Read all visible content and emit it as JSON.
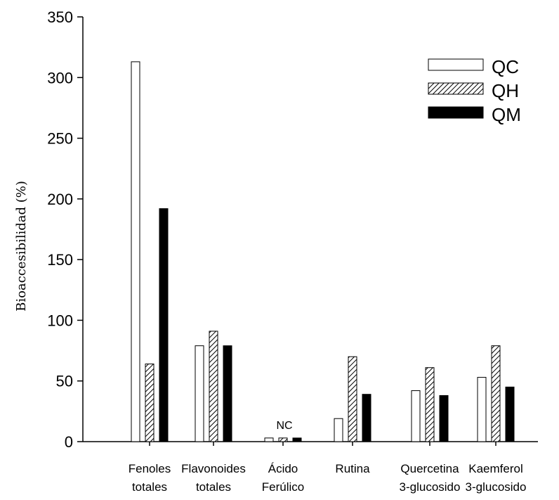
{
  "chart_data": {
    "type": "bar",
    "title": "",
    "xlabel": "",
    "ylabel": "Bioaccesibilidad (%)",
    "ylim": [
      0,
      350
    ],
    "yticks": [
      0,
      50,
      100,
      150,
      200,
      250,
      300,
      350
    ],
    "grid": false,
    "legend_position": "top-right",
    "categories": [
      [
        "Fenoles",
        "totales"
      ],
      [
        "Flavonoides",
        "totales"
      ],
      [
        "Ácido",
        "Ferúlico"
      ],
      [
        "Rutina"
      ],
      [
        "Quercetina",
        "3-glucosido"
      ],
      [
        "Kaemferol",
        "3-glucosido"
      ]
    ],
    "series": [
      {
        "name": "QC",
        "style": "white",
        "values": [
          313,
          79,
          3,
          19,
          42,
          53
        ]
      },
      {
        "name": "QH",
        "style": "hatched",
        "values": [
          64,
          91,
          3,
          70,
          61,
          79
        ]
      },
      {
        "name": "QM",
        "style": "black",
        "values": [
          192,
          79,
          3,
          39,
          38,
          45
        ]
      }
    ],
    "annotations": [
      {
        "text": "NC",
        "category_index": 2
      }
    ]
  }
}
